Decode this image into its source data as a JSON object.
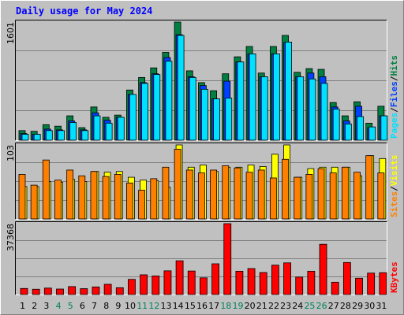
{
  "title": "Daily usage for May 2024",
  "colors": {
    "background": "#c0c0c0",
    "title": "#0000ff",
    "hits": "#008040",
    "files": "#0040ff",
    "pages": "#00e0ff",
    "visits": "#ffff00",
    "sites": "#ff8000",
    "kbytes": "#ff0000",
    "weekend_day": "#00805c",
    "weekday": "#000000"
  },
  "chart_data": [
    {
      "type": "bar",
      "panel": "hits-files-pages",
      "ymax_label": "1601",
      "ylim": [
        0,
        1601
      ],
      "grid": true,
      "legend": "right-vertical",
      "categories": [
        "1",
        "2",
        "3",
        "4",
        "5",
        "6",
        "7",
        "8",
        "9",
        "10",
        "11",
        "12",
        "13",
        "14",
        "15",
        "16",
        "17",
        "18",
        "19",
        "20",
        "21",
        "22",
        "23",
        "24",
        "25",
        "26",
        "27",
        "28",
        "29",
        "30",
        "31"
      ],
      "series": [
        {
          "name": "Hits",
          "values": [
            130,
            120,
            210,
            190,
            330,
            170,
            450,
            310,
            340,
            680,
            850,
            980,
            1190,
            1601,
            940,
            780,
            670,
            900,
            1130,
            1270,
            910,
            1270,
            1420,
            920,
            970,
            960,
            510,
            330,
            520,
            230,
            460
          ]
        },
        {
          "name": "Files",
          "values": [
            90,
            80,
            150,
            140,
            260,
            140,
            370,
            270,
            310,
            620,
            780,
            900,
            1120,
            1430,
            860,
            740,
            560,
            800,
            1060,
            1170,
            860,
            1170,
            1320,
            860,
            910,
            860,
            450,
            260,
            460,
            170,
            330
          ]
        },
        {
          "name": "Pages",
          "values": [
            80,
            80,
            130,
            130,
            240,
            130,
            330,
            230,
            310,
            620,
            770,
            890,
            1070,
            1420,
            850,
            690,
            560,
            570,
            1060,
            1170,
            860,
            1170,
            1330,
            860,
            830,
            770,
            420,
            220,
            320,
            180,
            330
          ]
        }
      ],
      "legend_entries": [
        "Pages",
        "/",
        "Files",
        "/",
        "Hits"
      ]
    },
    {
      "type": "bar",
      "panel": "visits-sites",
      "ymax_label": "103",
      "ylim": [
        0,
        103
      ],
      "grid": true,
      "categories": [
        "1",
        "2",
        "3",
        "4",
        "5",
        "6",
        "7",
        "8",
        "9",
        "10",
        "11",
        "12",
        "13",
        "14",
        "15",
        "16",
        "17",
        "18",
        "19",
        "20",
        "21",
        "22",
        "23",
        "24",
        "25",
        "26",
        "27",
        "28",
        "29",
        "30",
        "31"
      ],
      "series": [
        {
          "name": "Visits",
          "values": [
            45,
            45,
            52,
            51,
            55,
            52,
            66,
            65,
            66,
            58,
            54,
            53,
            44,
            103,
            72,
            75,
            66,
            72,
            72,
            75,
            73,
            90,
            103,
            58,
            70,
            72,
            72,
            72,
            60,
            88,
            84
          ]
        },
        {
          "name": "Sites",
          "values": [
            62,
            47,
            82,
            54,
            68,
            60,
            66,
            59,
            62,
            50,
            40,
            56,
            72,
            97,
            68,
            64,
            68,
            74,
            71,
            65,
            68,
            57,
            83,
            58,
            62,
            70,
            64,
            72,
            65,
            88,
            64
          ]
        }
      ],
      "legend_entries": [
        "Sites",
        "/",
        "Visits"
      ]
    },
    {
      "type": "bar",
      "panel": "kbytes",
      "ymax_label": "37368",
      "ylim": [
        0,
        37368
      ],
      "grid": true,
      "categories": [
        "1",
        "2",
        "3",
        "4",
        "5",
        "6",
        "7",
        "8",
        "9",
        "10",
        "11",
        "12",
        "13",
        "14",
        "15",
        "16",
        "17",
        "18",
        "19",
        "20",
        "21",
        "22",
        "23",
        "24",
        "25",
        "26",
        "27",
        "28",
        "29",
        "30",
        "31"
      ],
      "series": [
        {
          "name": "KBytes",
          "values": [
            3200,
            2800,
            3400,
            2900,
            4200,
            3100,
            4000,
            5400,
            3600,
            8000,
            10400,
            9800,
            12500,
            17800,
            12400,
            8800,
            16200,
            37368,
            12300,
            13700,
            11600,
            15500,
            16700,
            9200,
            12300,
            26500,
            6500,
            16900,
            8600,
            11300,
            11500
          ]
        }
      ],
      "legend_entries": [
        "KBytes"
      ]
    }
  ],
  "x_axis": {
    "days": [
      "1",
      "2",
      "3",
      "4",
      "5",
      "6",
      "7",
      "8",
      "9",
      "10",
      "11",
      "12",
      "13",
      "14",
      "15",
      "16",
      "17",
      "18",
      "19",
      "20",
      "21",
      "22",
      "23",
      "24",
      "25",
      "26",
      "27",
      "28",
      "29",
      "30",
      "31"
    ],
    "weekend": [
      false,
      false,
      false,
      true,
      true,
      false,
      false,
      false,
      false,
      false,
      true,
      true,
      false,
      false,
      false,
      false,
      false,
      true,
      true,
      false,
      false,
      false,
      false,
      false,
      true,
      true,
      false,
      false,
      false,
      false,
      false
    ]
  }
}
